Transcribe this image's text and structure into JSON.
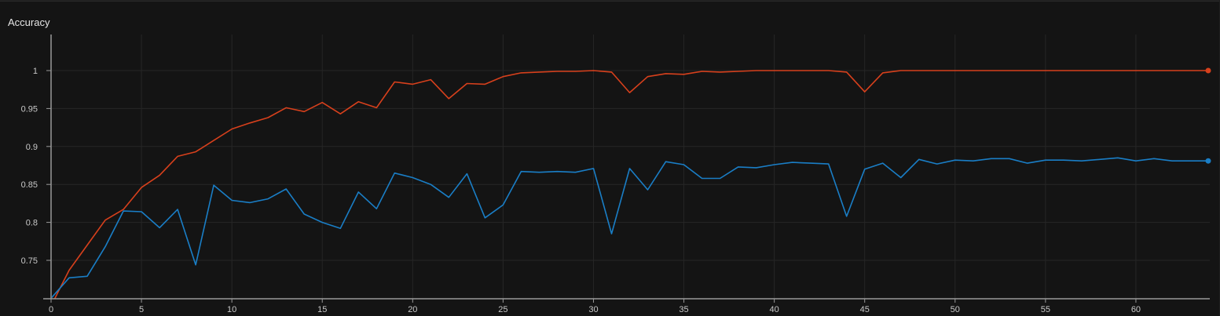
{
  "panel": {
    "title": "Accuracy"
  },
  "chart_data": {
    "type": "line",
    "title": "Accuracy",
    "xlabel": "",
    "ylabel": "",
    "xlim": [
      0,
      64
    ],
    "ylim": [
      0.7,
      1.05
    ],
    "x_ticks": [
      "0",
      "5",
      "10",
      "15",
      "20",
      "25",
      "30",
      "35",
      "40",
      "45",
      "50",
      "55",
      "60"
    ],
    "y_ticks": [
      "0.75",
      "0.8",
      "0.85",
      "0.9",
      "0.95",
      "1"
    ],
    "grid": true,
    "legend": "none",
    "series": [
      {
        "color": "#d7401c",
        "x": [
          0,
          1,
          2,
          3,
          4,
          5,
          6,
          7,
          8,
          9,
          10,
          11,
          12,
          13,
          14,
          15,
          16,
          17,
          18,
          19,
          20,
          21,
          22,
          23,
          24,
          25,
          26,
          27,
          28,
          29,
          30,
          31,
          32,
          33,
          34,
          35,
          36,
          37,
          38,
          39,
          40,
          41,
          42,
          43,
          44,
          45,
          46,
          47,
          48,
          49,
          50,
          51,
          52,
          53,
          54,
          55,
          56,
          57,
          58,
          59,
          60,
          61,
          62,
          63,
          64
        ],
        "values": [
          0.69,
          0.737,
          0.77,
          0.803,
          0.817,
          0.846,
          0.862,
          0.887,
          0.893,
          0.908,
          0.923,
          0.931,
          0.938,
          0.951,
          0.946,
          0.958,
          0.943,
          0.959,
          0.951,
          0.985,
          0.982,
          0.988,
          0.963,
          0.983,
          0.982,
          0.992,
          0.997,
          0.998,
          0.999,
          0.999,
          1.0,
          0.998,
          0.971,
          0.992,
          0.996,
          0.995,
          0.999,
          0.998,
          0.999,
          1.0,
          1.0,
          1.0,
          1.0,
          1.0,
          0.998,
          0.972,
          0.997,
          1.0,
          1.0,
          1.0,
          1.0,
          1.0,
          1.0,
          1.0,
          1.0,
          1.0,
          1.0,
          1.0,
          1.0,
          1.0,
          1.0,
          1.0,
          1.0,
          1.0,
          1.0
        ]
      },
      {
        "color": "#1a7ec6",
        "x": [
          0,
          1,
          2,
          3,
          4,
          5,
          6,
          7,
          8,
          9,
          10,
          11,
          12,
          13,
          14,
          15,
          16,
          17,
          18,
          19,
          20,
          21,
          22,
          23,
          24,
          25,
          26,
          27,
          28,
          29,
          30,
          31,
          32,
          33,
          34,
          35,
          36,
          37,
          38,
          39,
          40,
          41,
          42,
          43,
          44,
          45,
          46,
          47,
          48,
          49,
          50,
          51,
          52,
          53,
          54,
          55,
          56,
          57,
          58,
          59,
          60,
          61,
          62,
          63,
          64
        ],
        "values": [
          0.7,
          0.727,
          0.729,
          0.768,
          0.815,
          0.814,
          0.793,
          0.817,
          0.744,
          0.849,
          0.829,
          0.826,
          0.831,
          0.844,
          0.811,
          0.8,
          0.792,
          0.84,
          0.818,
          0.865,
          0.859,
          0.85,
          0.833,
          0.864,
          0.806,
          0.823,
          0.867,
          0.866,
          0.867,
          0.866,
          0.871,
          0.785,
          0.871,
          0.843,
          0.88,
          0.876,
          0.858,
          0.858,
          0.873,
          0.872,
          0.876,
          0.879,
          0.878,
          0.877,
          0.808,
          0.87,
          0.878,
          0.859,
          0.883,
          0.877,
          0.882,
          0.881,
          0.884,
          0.884,
          0.878,
          0.882,
          0.882,
          0.881,
          0.883,
          0.885,
          0.881,
          0.884,
          0.881,
          0.881,
          0.881
        ]
      }
    ]
  }
}
